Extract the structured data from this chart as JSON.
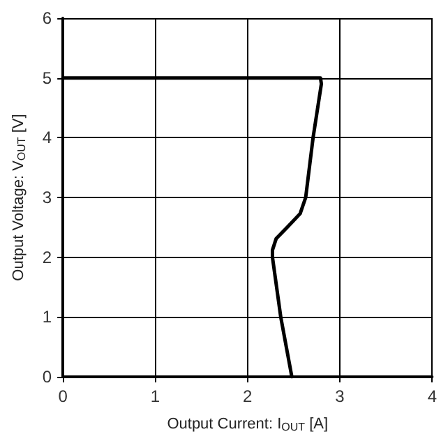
{
  "chart_data": {
    "type": "line",
    "xlabel": "Output Current: I$_{OUT}$ [A]",
    "ylabel": "Output Voltage: V$_{OUT}$ [V]",
    "series": [
      {
        "color": "#000000",
        "x": [
          0,
          2.79,
          2.8,
          2.71,
          2.63,
          2.57,
          2.43,
          2.31,
          2.27,
          2.27,
          2.36,
          2.48
        ],
        "values": [
          5,
          5,
          4.9,
          4,
          3,
          2.73,
          2.5,
          2.31,
          2.12,
          2,
          1,
          0
        ]
      }
    ],
    "xlim": [
      0,
      4
    ],
    "ylim": [
      0,
      6
    ],
    "xticks": [
      0,
      1,
      2,
      3,
      4
    ],
    "yticks": [
      0,
      1,
      2,
      3,
      4,
      5,
      6
    ],
    "grid": true,
    "marker": "none",
    "line_style": "solid"
  }
}
